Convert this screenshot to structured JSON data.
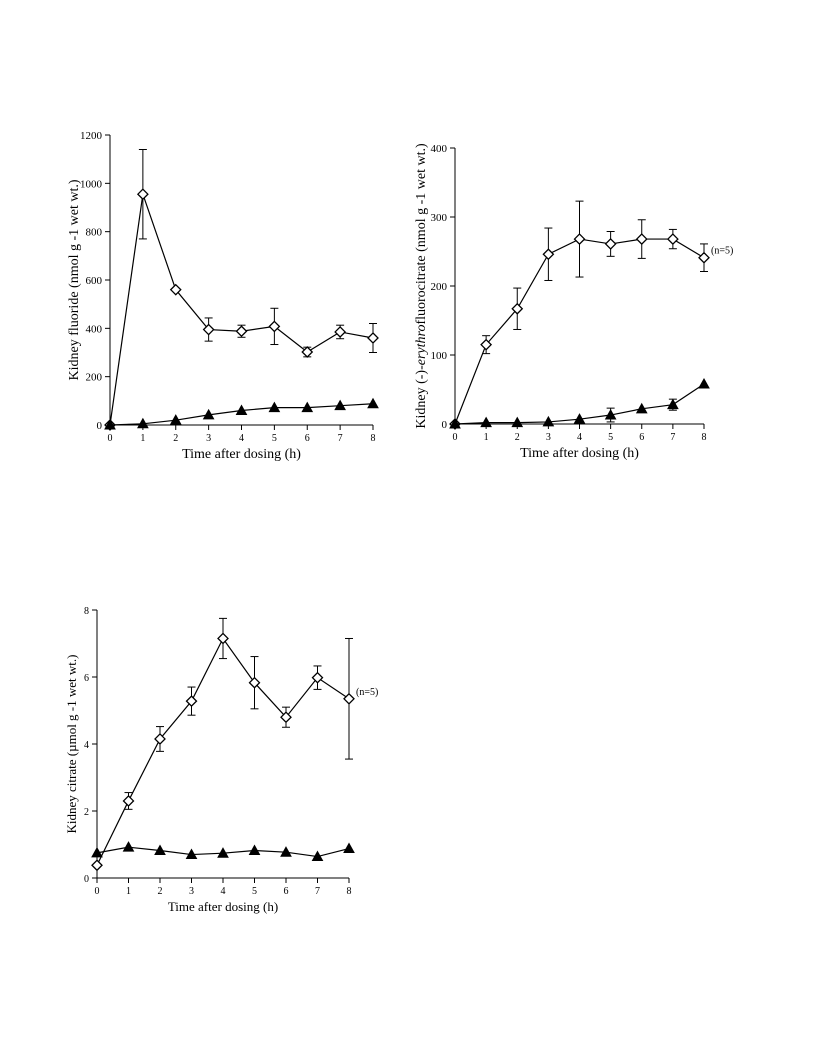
{
  "chart_data": [
    {
      "type": "line",
      "ylabel": "Kidney fluoride (nmol g -1 wet wt.)",
      "xlabel": "Time after dosing (h)",
      "xlim": [
        0,
        8
      ],
      "ylim": [
        0,
        1200
      ],
      "xticks": [
        "0",
        "1",
        "2",
        "3",
        "4",
        "5",
        "6",
        "7",
        "8"
      ],
      "yticks": [
        "0",
        "200",
        "400",
        "600",
        "800",
        "1000",
        "1200"
      ],
      "annotation": "",
      "series": [
        {
          "marker": "open-diamond",
          "x": [
            0,
            1,
            2,
            3,
            4,
            5,
            6,
            7,
            8
          ],
          "y": [
            0,
            955,
            560,
            395,
            388,
            408,
            302,
            385,
            360
          ],
          "err": [
            0,
            185,
            0,
            48,
            25,
            75,
            20,
            28,
            60
          ]
        },
        {
          "marker": "filled-triangle",
          "x": [
            0,
            1,
            2,
            3,
            4,
            5,
            6,
            7,
            8
          ],
          "y": [
            0,
            5,
            20,
            42,
            60,
            72,
            72,
            80,
            88
          ],
          "err": [
            0,
            0,
            0,
            0,
            0,
            0,
            0,
            0,
            0
          ]
        }
      ]
    },
    {
      "type": "line",
      "ylabel_pre": "Kidney (-)-",
      "ylabel_italic": "erythro",
      "ylabel_post": "fluorocitrate (nmol g -1 wet wt.)",
      "xlabel": "Time after dosing (h)",
      "xlim": [
        0,
        8
      ],
      "ylim": [
        0,
        400
      ],
      "xticks": [
        "0",
        "1",
        "2",
        "3",
        "4",
        "5",
        "6",
        "7",
        "8"
      ],
      "yticks": [
        "0",
        "100",
        "200",
        "300",
        "400"
      ],
      "annotation": "(n=5)",
      "series": [
        {
          "marker": "open-diamond",
          "x": [
            0,
            1,
            2,
            3,
            4,
            5,
            6,
            7,
            8
          ],
          "y": [
            0,
            115,
            167,
            246,
            268,
            261,
            268,
            268,
            241
          ],
          "err": [
            0,
            13,
            30,
            38,
            55,
            18,
            28,
            14,
            20
          ]
        },
        {
          "marker": "filled-triangle",
          "x": [
            0,
            1,
            2,
            3,
            4,
            5,
            6,
            7,
            8
          ],
          "y": [
            0,
            2,
            2,
            3,
            7,
            13,
            22,
            28,
            58
          ],
          "err": [
            0,
            0,
            0,
            0,
            0,
            10,
            0,
            8,
            0
          ]
        }
      ]
    },
    {
      "type": "line",
      "ylabel": "Kidney citrate (µmol g -1 wet wt.)",
      "xlabel": "Time after dosing (h)",
      "xlim": [
        0,
        8
      ],
      "ylim": [
        0,
        8
      ],
      "xticks": [
        "0",
        "1",
        "2",
        "3",
        "4",
        "5",
        "6",
        "7",
        "8"
      ],
      "yticks": [
        "0",
        "2",
        "4",
        "6",
        "8"
      ],
      "annotation": "(n=5)",
      "series": [
        {
          "marker": "open-diamond",
          "x": [
            0,
            1,
            2,
            3,
            4,
            5,
            6,
            7,
            8
          ],
          "y": [
            0.38,
            2.3,
            4.15,
            5.28,
            7.15,
            5.83,
            4.8,
            5.98,
            5.35
          ],
          "err": [
            0,
            0.25,
            0.37,
            0.42,
            0.6,
            0.78,
            0.3,
            0.35,
            1.8
          ]
        },
        {
          "marker": "filled-triangle",
          "x": [
            0,
            1,
            2,
            3,
            4,
            5,
            6,
            7,
            8
          ],
          "y": [
            0.75,
            0.92,
            0.82,
            0.7,
            0.74,
            0.82,
            0.77,
            0.64,
            0.88
          ],
          "err": [
            0,
            0,
            0,
            0,
            0,
            0,
            0,
            0,
            0
          ]
        }
      ]
    }
  ]
}
